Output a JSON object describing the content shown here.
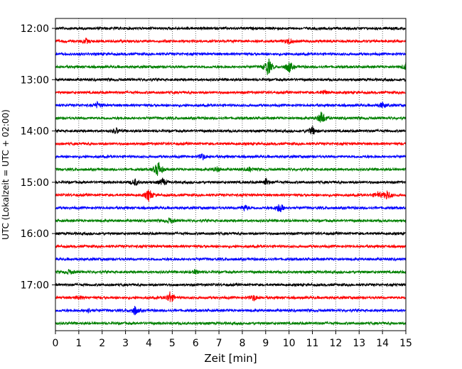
{
  "chart_data": {
    "type": "line",
    "title": "",
    "xlabel": "Zeit  [min]",
    "ylabel": "UTC (Lokalzeit = UTC + 02:00)",
    "xlim": [
      0,
      15
    ],
    "x_ticks": [
      0,
      1,
      2,
      3,
      4,
      5,
      6,
      7,
      8,
      9,
      10,
      11,
      12,
      13,
      14,
      15
    ],
    "grid": "vertical dotted",
    "y_tick_labels": [
      "12:00",
      "13:00",
      "14:00",
      "15:00",
      "16:00",
      "17:00"
    ],
    "trace_colors": [
      "#000000",
      "#ff0000",
      "#0000ff",
      "#008000"
    ],
    "traces": [
      {
        "start": "12:00",
        "color": "#000000",
        "events": []
      },
      {
        "start": "12:15",
        "color": "#ff0000",
        "events": [
          {
            "t": 1.3,
            "amp": 0.25
          },
          {
            "t": 10.0,
            "amp": 0.3
          }
        ]
      },
      {
        "start": "12:30",
        "color": "#0000ff",
        "events": []
      },
      {
        "start": "12:45",
        "color": "#008000",
        "events": [
          {
            "t": 9.1,
            "amp": 1.0
          },
          {
            "t": 10.0,
            "amp": 0.6
          },
          {
            "t": 15.0,
            "amp": 0.4
          }
        ]
      },
      {
        "start": "13:00",
        "color": "#000000",
        "events": []
      },
      {
        "start": "13:15",
        "color": "#ff0000",
        "events": [
          {
            "t": 11.5,
            "amp": 0.2
          }
        ]
      },
      {
        "start": "13:30",
        "color": "#0000ff",
        "events": [
          {
            "t": 1.8,
            "amp": 0.3
          },
          {
            "t": 14.0,
            "amp": 0.3
          }
        ]
      },
      {
        "start": "13:45",
        "color": "#008000",
        "events": [
          {
            "t": 11.4,
            "amp": 0.75
          }
        ]
      },
      {
        "start": "14:00",
        "color": "#000000",
        "events": [
          {
            "t": 2.6,
            "amp": 0.3
          },
          {
            "t": 11.0,
            "amp": 0.45
          }
        ]
      },
      {
        "start": "14:15",
        "color": "#ff0000",
        "events": []
      },
      {
        "start": "14:30",
        "color": "#0000ff",
        "events": [
          {
            "t": 6.3,
            "amp": 0.3
          }
        ]
      },
      {
        "start": "14:45",
        "color": "#008000",
        "events": [
          {
            "t": 4.4,
            "amp": 0.9
          },
          {
            "t": 6.9,
            "amp": 0.25
          },
          {
            "t": 8.3,
            "amp": 0.2
          }
        ]
      },
      {
        "start": "15:00",
        "color": "#000000",
        "events": [
          {
            "t": 3.4,
            "amp": 0.35
          },
          {
            "t": 4.6,
            "amp": 0.4
          },
          {
            "t": 9.0,
            "amp": 0.35
          }
        ]
      },
      {
        "start": "15:15",
        "color": "#ff0000",
        "events": [
          {
            "t": 4.0,
            "amp": 0.65
          },
          {
            "t": 14.2,
            "amp": 0.5
          },
          {
            "t": 13.8,
            "amp": 0.3
          }
        ]
      },
      {
        "start": "15:30",
        "color": "#0000ff",
        "events": [
          {
            "t": 8.1,
            "amp": 0.3
          },
          {
            "t": 9.6,
            "amp": 0.55
          }
        ]
      },
      {
        "start": "15:45",
        "color": "#008000",
        "events": [
          {
            "t": 4.9,
            "amp": 0.3
          }
        ]
      },
      {
        "start": "16:00",
        "color": "#000000",
        "events": []
      },
      {
        "start": "16:15",
        "color": "#ff0000",
        "events": []
      },
      {
        "start": "16:30",
        "color": "#0000ff",
        "events": []
      },
      {
        "start": "16:45",
        "color": "#008000",
        "events": [
          {
            "t": 0.6,
            "amp": 0.25
          },
          {
            "t": 6.0,
            "amp": 0.2
          }
        ]
      },
      {
        "start": "17:00",
        "color": "#000000",
        "events": []
      },
      {
        "start": "17:15",
        "color": "#ff0000",
        "events": [
          {
            "t": 4.9,
            "amp": 0.6
          },
          {
            "t": 8.5,
            "amp": 0.3
          },
          {
            "t": 1.0,
            "amp": 0.2
          }
        ]
      },
      {
        "start": "17:30",
        "color": "#0000ff",
        "events": [
          {
            "t": 3.4,
            "amp": 0.45
          },
          {
            "t": 1.4,
            "amp": 0.2
          }
        ]
      },
      {
        "start": "17:45",
        "color": "#008000",
        "events": []
      }
    ]
  }
}
